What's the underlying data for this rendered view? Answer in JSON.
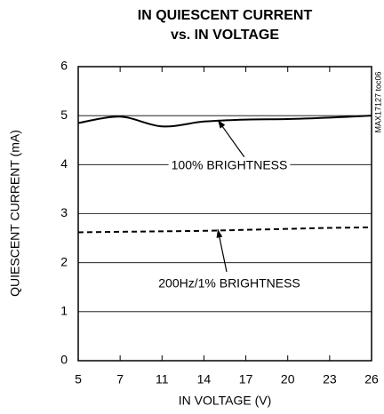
{
  "chart_data": {
    "type": "line",
    "title": [
      "IN QUIESCENT CURRENT",
      "vs. IN VOLTAGE"
    ],
    "x_label": "IN VOLTAGE (V)",
    "y_label": "QUIESCENT CURRENT (mA)",
    "categories": [
      "5",
      "7",
      "11",
      "14",
      "17",
      "20",
      "23",
      "26"
    ],
    "series": [
      {
        "name": "100% BRIGHTNESS",
        "color": "#000000",
        "style": "solid",
        "values": [
          4.85,
          4.98,
          4.78,
          4.88,
          4.92,
          4.93,
          4.96,
          5.0
        ]
      },
      {
        "name": "200Hz/1% BRIGHTNESS",
        "color": "#000000",
        "style": "dashed",
        "values": [
          2.62,
          2.63,
          2.64,
          2.65,
          2.67,
          2.69,
          2.71,
          2.72
        ]
      }
    ],
    "ylim": [
      0,
      6
    ],
    "yticks": [
      0,
      1,
      2,
      3,
      4,
      5,
      6
    ],
    "grid": true,
    "side_note": "MAX17127 toc06"
  }
}
